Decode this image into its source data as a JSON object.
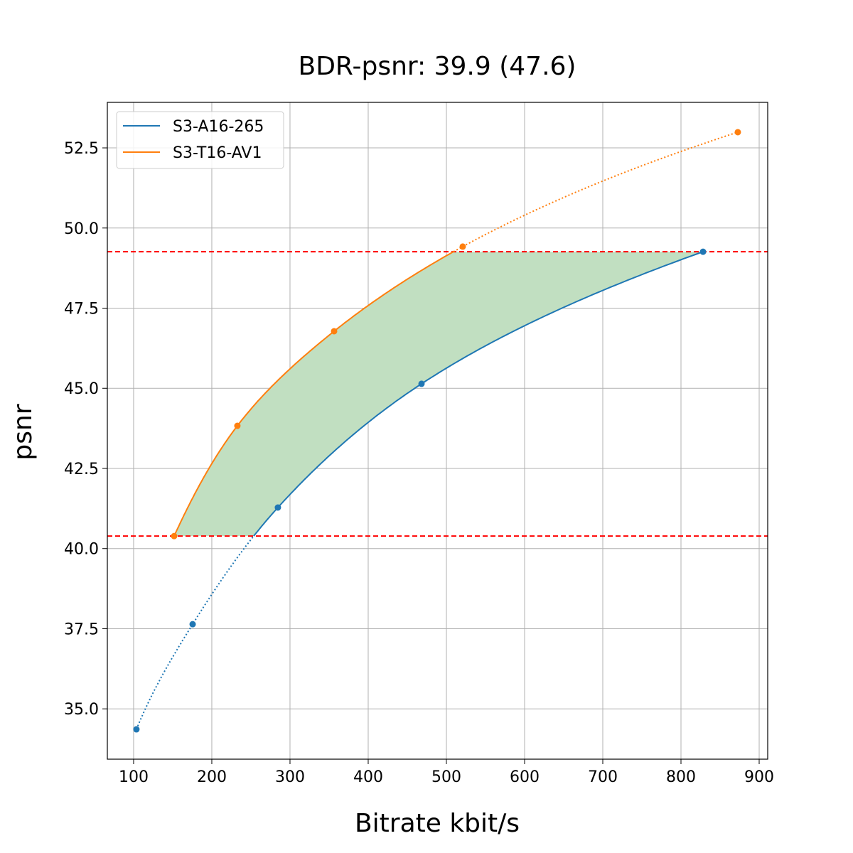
{
  "chart_data": {
    "type": "line",
    "title": "BDR-psnr: 39.9 (47.6)",
    "xlabel": "Bitrate kbit/s",
    "ylabel": "psnr",
    "xlim": [
      66.4,
      910.9
    ],
    "ylim": [
      33.43,
      53.92
    ],
    "xticks": [
      100,
      200,
      300,
      400,
      500,
      600,
      700,
      800,
      900
    ],
    "yticks": [
      35.0,
      37.5,
      40.0,
      42.5,
      45.0,
      47.5,
      50.0,
      52.5
    ],
    "grid": true,
    "legend_position": "top-left",
    "series": [
      {
        "name": "S3-A16-265",
        "color": "#1f77b4",
        "x": [
          103.6,
          175.5,
          284.5,
          468.2,
          828.2
        ],
        "y": [
          34.36,
          37.64,
          41.28,
          45.14,
          49.26
        ]
      },
      {
        "name": "S3-T16-AV1",
        "color": "#ff7f0e",
        "x": [
          151.8,
          232.7,
          356.4,
          520.9,
          872.7
        ],
        "y": [
          40.39,
          43.83,
          46.78,
          49.42,
          52.99
        ]
      }
    ],
    "overlap_range": [
      40.39,
      49.26
    ],
    "overlap_line_color": "#ff0000",
    "fill_color": "#c1dfc1"
  }
}
